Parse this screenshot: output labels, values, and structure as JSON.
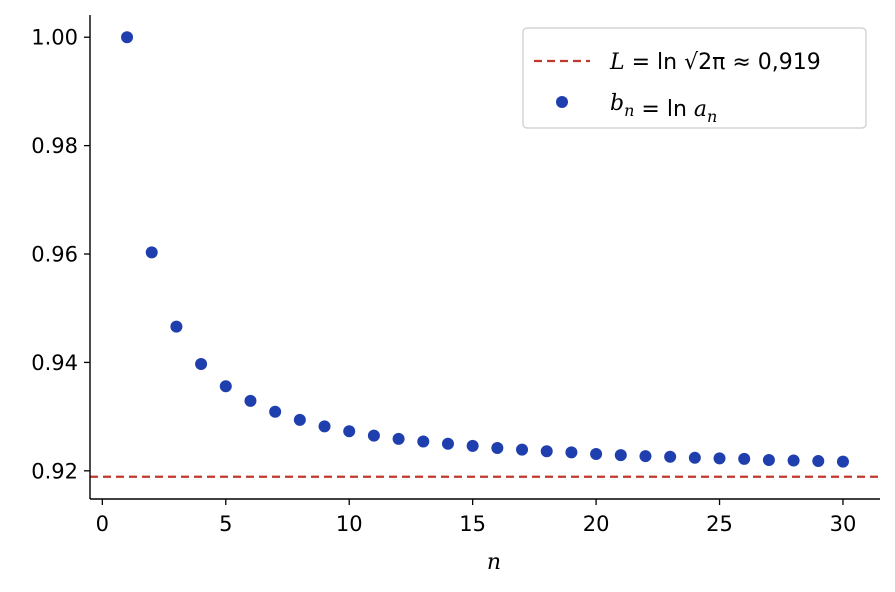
{
  "chart_data": {
    "type": "scatter",
    "title": "",
    "xlabel": "n",
    "ylabel": "",
    "xlim": [
      -0.5,
      31.5
    ],
    "ylim": [
      0.9148,
      1.0041
    ],
    "xticks": [
      0,
      5,
      10,
      15,
      20,
      25,
      30
    ],
    "xtick_labels": [
      "0",
      "5",
      "10",
      "15",
      "20",
      "25",
      "30"
    ],
    "yticks": [
      0.92,
      0.94,
      0.96,
      0.98,
      1.0
    ],
    "ytick_labels": [
      "0.92",
      "0.94",
      "0.96",
      "0.98",
      "1.00"
    ],
    "grid": false,
    "legend_position": "top-right",
    "series": [
      {
        "kind": "hline",
        "y": 0.9189,
        "style": "dashed",
        "color": "#c0392b",
        "legend_parts": [
          {
            "t": "L",
            "i": true
          },
          {
            "t": " = ln ",
            "i": false
          },
          {
            "t": "√2π",
            "i": false
          },
          {
            "t": " ≈ 0,919",
            "i": false
          }
        ]
      },
      {
        "kind": "scatter",
        "color": "#1f3fae",
        "legend_parts": [
          {
            "t": "b",
            "i": true
          },
          {
            "t": "n",
            "i": true,
            "sub": true
          },
          {
            "t": " = ln ",
            "i": false
          },
          {
            "t": "a",
            "i": true
          },
          {
            "t": "n",
            "i": true,
            "sub": true
          }
        ],
        "x": [
          1,
          2,
          3,
          4,
          5,
          6,
          7,
          8,
          9,
          10,
          11,
          12,
          13,
          14,
          15,
          16,
          17,
          18,
          19,
          20,
          21,
          22,
          23,
          24,
          25,
          26,
          27,
          28,
          29,
          30
        ],
        "y": [
          1.0,
          0.9603,
          0.9466,
          0.9397,
          0.9356,
          0.9329,
          0.9309,
          0.9294,
          0.9282,
          0.9273,
          0.9265,
          0.9259,
          0.9254,
          0.925,
          0.9246,
          0.9242,
          0.9239,
          0.9236,
          0.9234,
          0.9231,
          0.9229,
          0.9227,
          0.9226,
          0.9224,
          0.9223,
          0.9222,
          0.922,
          0.9219,
          0.9218,
          0.9217
        ]
      }
    ]
  }
}
